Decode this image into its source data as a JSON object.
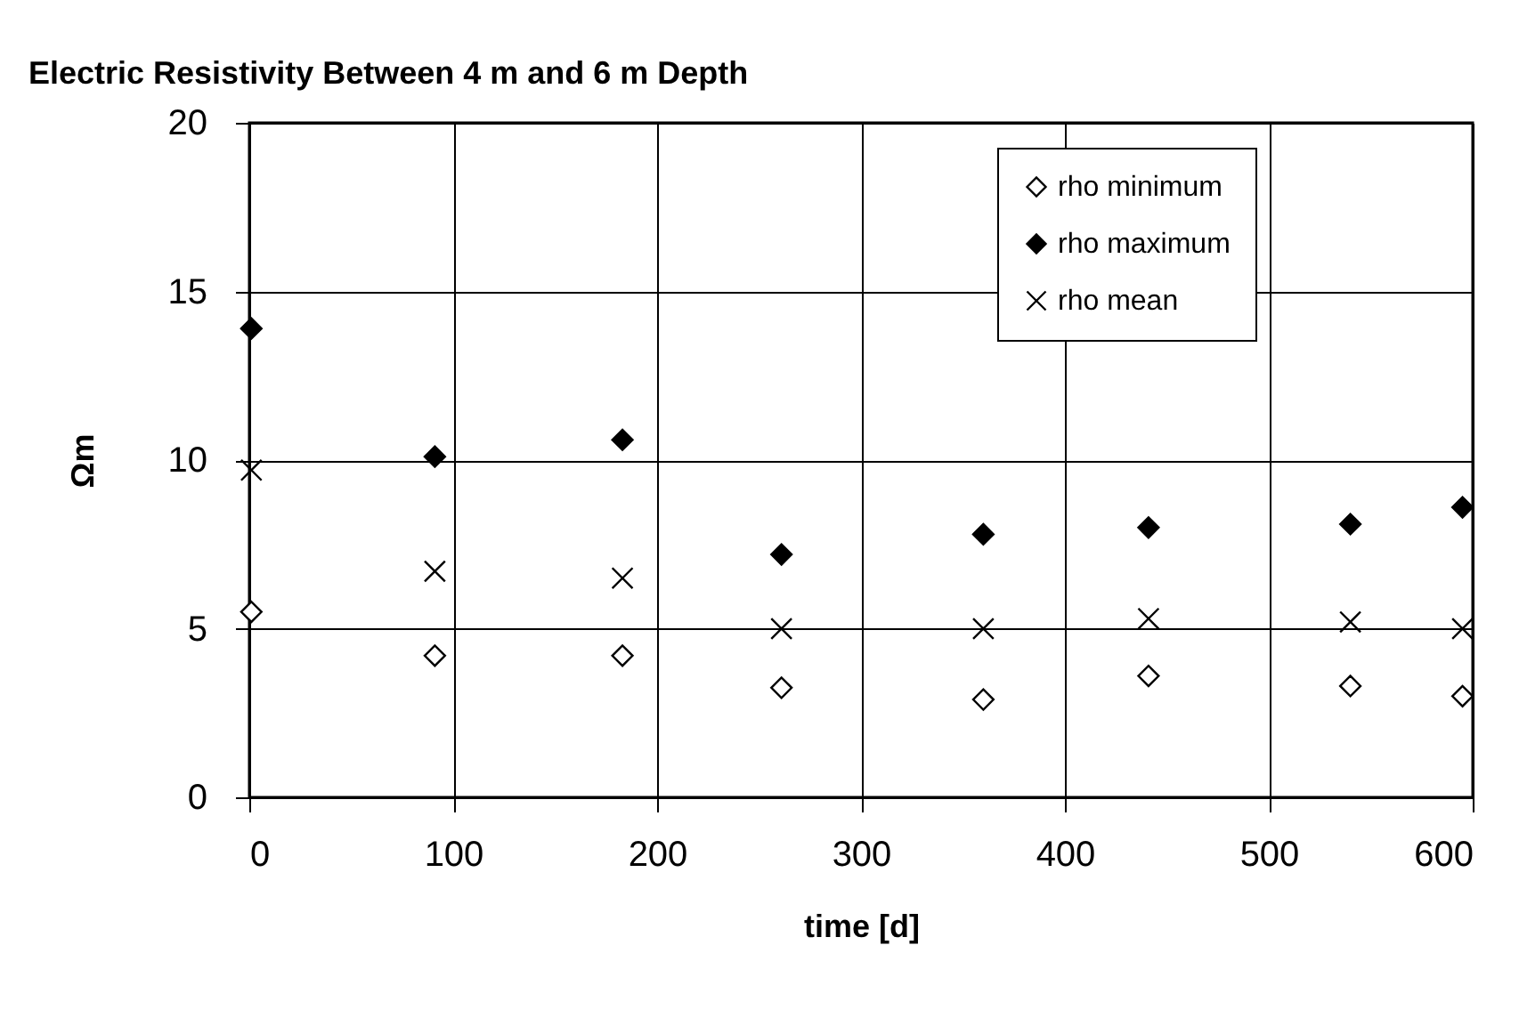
{
  "chart_data": {
    "type": "scatter",
    "title": "Electric Resistivity Between 4 m and 6 m Depth",
    "xlabel": "time [d]",
    "ylabel": "Ωm",
    "x": [
      1,
      91,
      183,
      261,
      360,
      441,
      540,
      595
    ],
    "series": [
      {
        "name": "rho minimum",
        "color": "#ffffff",
        "marker": "diamond",
        "values": [
          5.5,
          4.2,
          4.2,
          3.25,
          2.9,
          3.6,
          3.3,
          3.0
        ]
      },
      {
        "name": "rho maximum",
        "color": "#000000",
        "marker": "diamond",
        "values": [
          13.9,
          10.1,
          10.6,
          7.2,
          7.8,
          8.0,
          8.1,
          8.6
        ]
      },
      {
        "name": "rho mean",
        "color": "#000000",
        "marker": "cross",
        "values": [
          9.7,
          6.7,
          6.5,
          5.0,
          5.0,
          5.3,
          5.2,
          5.0
        ]
      }
    ],
    "xlim": [
      0,
      600
    ],
    "xticks": [
      0,
      100,
      200,
      300,
      400,
      500,
      600
    ],
    "ylim": [
      0,
      20
    ],
    "yticks": [
      0,
      5,
      10,
      15,
      20
    ],
    "grid": true,
    "legend": "top right"
  }
}
